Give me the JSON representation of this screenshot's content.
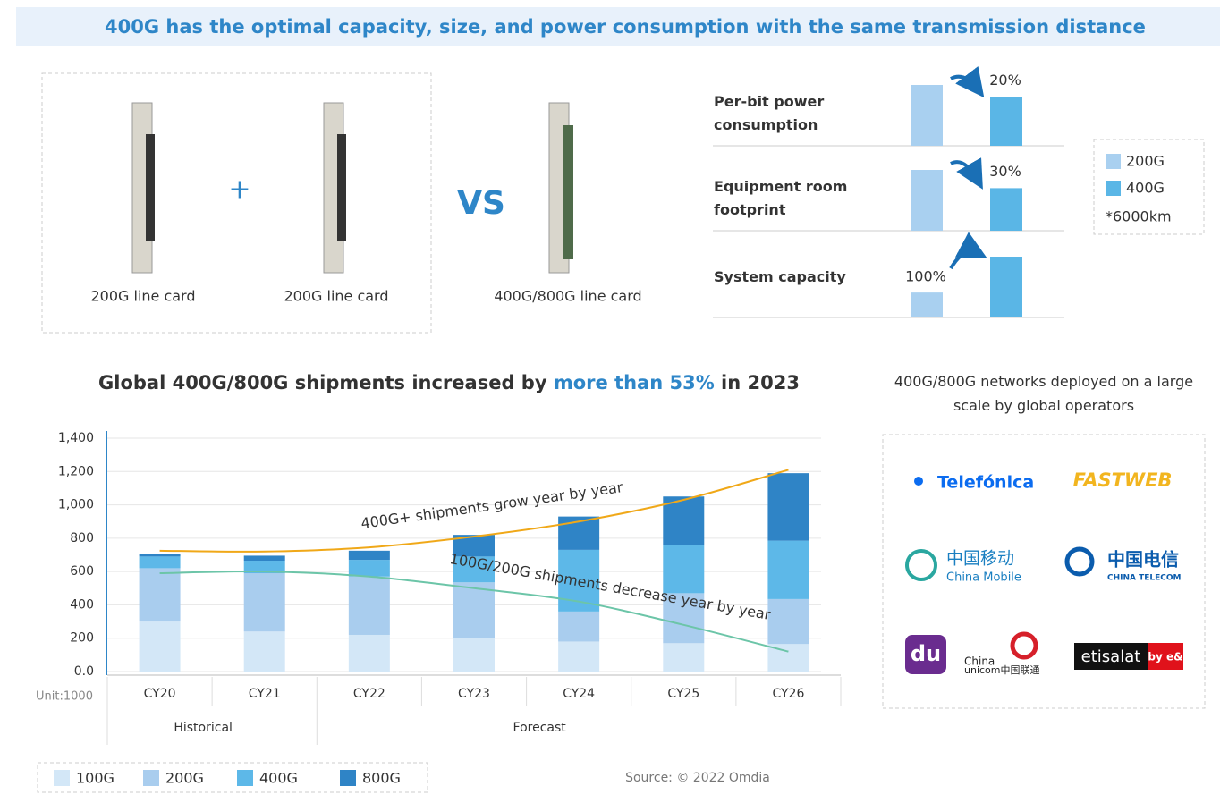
{
  "header": {
    "title": "400G has the optimal capacity, size, and power consumption with the same transmission distance"
  },
  "line_cards": {
    "labels": [
      "200G line card",
      "200G line card",
      "400G/800G line card"
    ],
    "plus": "+",
    "vs": "VS"
  },
  "chart_data": [
    {
      "type": "comparison",
      "categories": [
        "Per-bit power consumption",
        "Equipment room footprint",
        "System capacity"
      ],
      "series": [
        {
          "name": "200G",
          "color": "#a9d0f0",
          "values": [
            100,
            100,
            41
          ]
        },
        {
          "name": "400G",
          "color": "#5ab6e6",
          "values": [
            80,
            70,
            100
          ]
        }
      ],
      "annotations": [
        "20%",
        "30%",
        "100%"
      ],
      "ylim": [
        0,
        100
      ],
      "note": "*6000km"
    },
    {
      "type": "stacked-bar",
      "title_parts": [
        "Global 400G/800G shipments increased by ",
        "more than 53%",
        " in 2023"
      ],
      "categories": [
        "CY20",
        "CY21",
        "CY22",
        "CY23",
        "CY24",
        "CY25",
        "CY26"
      ],
      "series": [
        {
          "name": "100G",
          "color": "#d3e7f7",
          "values": [
            300,
            240,
            220,
            200,
            180,
            170,
            165
          ]
        },
        {
          "name": "200G",
          "color": "#a9cdee",
          "values": [
            320,
            350,
            350,
            335,
            180,
            300,
            270
          ]
        },
        {
          "name": "400G",
          "color": "#5db8e8",
          "values": [
            70,
            75,
            100,
            155,
            370,
            290,
            350
          ]
        },
        {
          "name": "800G",
          "color": "#2f84c6",
          "values": [
            15,
            30,
            55,
            130,
            200,
            290,
            405
          ]
        }
      ],
      "trend_lines": [
        {
          "label": "400G+ shipments grow year by year",
          "color": "#f0a818",
          "values": [
            725,
            720,
            745,
            810,
            900,
            1030,
            1210
          ]
        },
        {
          "label": "100G/200G shipments decrease year by year",
          "color": "#6cc5a8",
          "values": [
            590,
            600,
            570,
            500,
            420,
            280,
            120
          ]
        }
      ],
      "ylim": [
        0,
        1400
      ],
      "yticks": [
        {
          "value": 0,
          "label": "0.0"
        },
        200,
        400,
        600,
        800,
        {
          "value": 1000,
          "label": "1,000"
        },
        {
          "value": 1200,
          "label": "1,200"
        },
        {
          "value": 1400,
          "label": "1,400"
        }
      ],
      "grid": true,
      "unit_label": "Unit:1000",
      "periods": [
        "Historical",
        "Forecast"
      ],
      "source": "Source: © 2022 Omdia"
    }
  ],
  "operators": {
    "caption": "400G/800G networks deployed on a large scale by global operators",
    "logos": [
      {
        "text": "Telefónica"
      },
      {
        "text": "FASTWEB"
      },
      {
        "text": "中国移动",
        "sub": "China Mobile"
      },
      {
        "text": "中国电信",
        "sub": "CHINA TELECOM"
      },
      {
        "text": "du"
      },
      {
        "text": "China",
        "sub": "unicom中国联通"
      },
      {
        "text": "etisalat",
        "sub": "by e&"
      }
    ]
  }
}
